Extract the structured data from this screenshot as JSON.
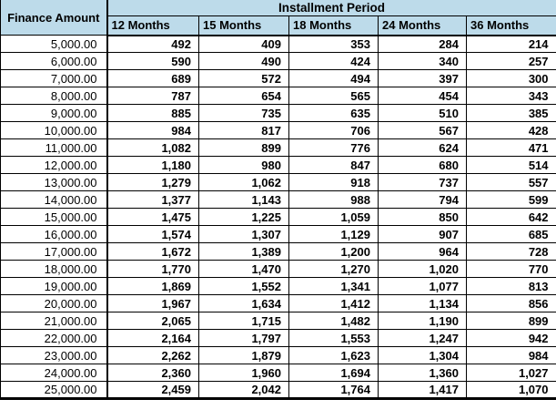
{
  "colors": {
    "header_bg": "#BDDBEA",
    "cell_bg": "#FFFFFF",
    "border": "#000000",
    "text": "#000000"
  },
  "table": {
    "corner_header": "Finance Amount",
    "group_header": "Installment Period",
    "period_headers": [
      "12 Months",
      "15 Months",
      "18 Months",
      "24 Months",
      "36 Months"
    ],
    "rows": [
      {
        "amount": "5,000.00",
        "values": [
          "492",
          "409",
          "353",
          "284",
          "214"
        ]
      },
      {
        "amount": "6,000.00",
        "values": [
          "590",
          "490",
          "424",
          "340",
          "257"
        ]
      },
      {
        "amount": "7,000.00",
        "values": [
          "689",
          "572",
          "494",
          "397",
          "300"
        ]
      },
      {
        "amount": "8,000.00",
        "values": [
          "787",
          "654",
          "565",
          "454",
          "343"
        ]
      },
      {
        "amount": "9,000.00",
        "values": [
          "885",
          "735",
          "635",
          "510",
          "385"
        ]
      },
      {
        "amount": "10,000.00",
        "values": [
          "984",
          "817",
          "706",
          "567",
          "428"
        ]
      },
      {
        "amount": "11,000.00",
        "values": [
          "1,082",
          "899",
          "776",
          "624",
          "471"
        ]
      },
      {
        "amount": "12,000.00",
        "values": [
          "1,180",
          "980",
          "847",
          "680",
          "514"
        ]
      },
      {
        "amount": "13,000.00",
        "values": [
          "1,279",
          "1,062",
          "918",
          "737",
          "557"
        ]
      },
      {
        "amount": "14,000.00",
        "values": [
          "1,377",
          "1,143",
          "988",
          "794",
          "599"
        ]
      },
      {
        "amount": "15,000.00",
        "values": [
          "1,475",
          "1,225",
          "1,059",
          "850",
          "642"
        ]
      },
      {
        "amount": "16,000.00",
        "values": [
          "1,574",
          "1,307",
          "1,129",
          "907",
          "685"
        ]
      },
      {
        "amount": "17,000.00",
        "values": [
          "1,672",
          "1,389",
          "1,200",
          "964",
          "728"
        ]
      },
      {
        "amount": "18,000.00",
        "values": [
          "1,770",
          "1,470",
          "1,270",
          "1,020",
          "770"
        ]
      },
      {
        "amount": "19,000.00",
        "values": [
          "1,869",
          "1,552",
          "1,341",
          "1,077",
          "813"
        ]
      },
      {
        "amount": "20,000.00",
        "values": [
          "1,967",
          "1,634",
          "1,412",
          "1,134",
          "856"
        ]
      },
      {
        "amount": "21,000.00",
        "values": [
          "2,065",
          "1,715",
          "1,482",
          "1,190",
          "899"
        ]
      },
      {
        "amount": "22,000.00",
        "values": [
          "2,164",
          "1,797",
          "1,553",
          "1,247",
          "942"
        ]
      },
      {
        "amount": "23,000.00",
        "values": [
          "2,262",
          "1,879",
          "1,623",
          "1,304",
          "984"
        ]
      },
      {
        "amount": "24,000.00",
        "values": [
          "2,360",
          "1,960",
          "1,694",
          "1,360",
          "1,027"
        ]
      },
      {
        "amount": "25,000.00",
        "values": [
          "2,459",
          "2,042",
          "1,764",
          "1,417",
          "1,070"
        ]
      }
    ]
  },
  "chart_data": {
    "type": "table",
    "title": "Installment Period",
    "columns": [
      "Finance Amount",
      "12 Months",
      "15 Months",
      "18 Months",
      "24 Months",
      "36 Months"
    ],
    "rows": [
      [
        5000,
        492,
        409,
        353,
        284,
        214
      ],
      [
        6000,
        590,
        490,
        424,
        340,
        257
      ],
      [
        7000,
        689,
        572,
        494,
        397,
        300
      ],
      [
        8000,
        787,
        654,
        565,
        454,
        343
      ],
      [
        9000,
        885,
        735,
        635,
        510,
        385
      ],
      [
        10000,
        984,
        817,
        706,
        567,
        428
      ],
      [
        11000,
        1082,
        899,
        776,
        624,
        471
      ],
      [
        12000,
        1180,
        980,
        847,
        680,
        514
      ],
      [
        13000,
        1279,
        1062,
        918,
        737,
        557
      ],
      [
        14000,
        1377,
        1143,
        988,
        794,
        599
      ],
      [
        15000,
        1475,
        1225,
        1059,
        850,
        642
      ],
      [
        16000,
        1574,
        1307,
        1129,
        907,
        685
      ],
      [
        17000,
        1672,
        1389,
        1200,
        964,
        728
      ],
      [
        18000,
        1770,
        1470,
        1270,
        1020,
        770
      ],
      [
        19000,
        1869,
        1552,
        1341,
        1077,
        813
      ],
      [
        20000,
        1967,
        1634,
        1412,
        1134,
        856
      ],
      [
        21000,
        2065,
        1715,
        1482,
        1190,
        899
      ],
      [
        22000,
        2164,
        1797,
        1553,
        1247,
        942
      ],
      [
        23000,
        2262,
        1879,
        1623,
        1304,
        984
      ],
      [
        24000,
        2360,
        1960,
        1694,
        1360,
        1027
      ],
      [
        25000,
        2459,
        2042,
        1764,
        1417,
        1070
      ]
    ]
  }
}
